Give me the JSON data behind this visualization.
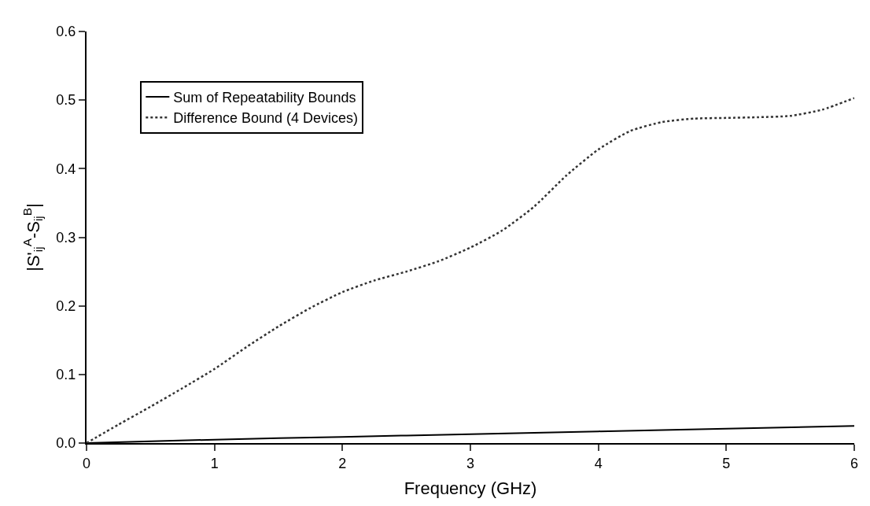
{
  "chart_data": {
    "type": "line",
    "xlabel": "Frequency (GHz)",
    "ylabel": "|S'$_{ij}$$^{A}$-S$_{ij}$$^{B}$|",
    "xlim": [
      0,
      6
    ],
    "xticks": [
      0,
      1,
      2,
      3,
      4,
      5,
      6
    ],
    "ylim": [
      0,
      0.6
    ],
    "yticks": [
      {
        "value": 0,
        "label": "0.0"
      },
      0.1,
      0.2,
      0.3,
      0.4,
      0.5,
      0.6
    ],
    "legend": "top left",
    "marker": "none",
    "series": [
      {
        "name": "Sum of Repeatability Bounds",
        "color": "#000000",
        "line_style": "solid",
        "x": [
          0,
          1,
          2,
          3,
          4,
          5,
          6
        ],
        "values": [
          0.0,
          0.005,
          0.009,
          0.013,
          0.017,
          0.021,
          0.025
        ]
      },
      {
        "name": "Difference Bound (4 Devices)",
        "color": "#333333",
        "line_style": "dotted",
        "x": [
          0,
          0.25,
          0.5,
          0.75,
          1,
          1.25,
          1.5,
          1.75,
          2,
          2.25,
          2.5,
          2.75,
          3,
          3.25,
          3.5,
          3.75,
          4,
          4.25,
          4.5,
          4.75,
          5,
          5.25,
          5.5,
          5.75,
          6
        ],
        "values": [
          0.0,
          0.027,
          0.053,
          0.08,
          0.108,
          0.14,
          0.17,
          0.197,
          0.22,
          0.237,
          0.25,
          0.265,
          0.285,
          0.31,
          0.345,
          0.39,
          0.428,
          0.455,
          0.468,
          0.473,
          0.474,
          0.475,
          0.477,
          0.486,
          0.503
        ]
      }
    ]
  }
}
